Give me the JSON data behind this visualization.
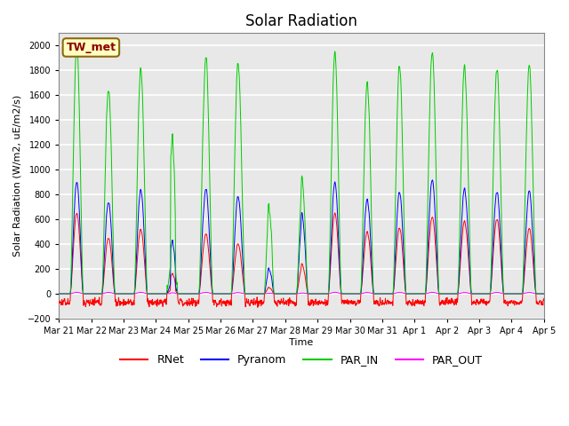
{
  "title": "Solar Radiation",
  "xlabel": "Time",
  "ylabel": "Solar Radiation (W/m2, uE/m2/s)",
  "ylim": [
    -200,
    2100
  ],
  "yticks": [
    -200,
    0,
    200,
    400,
    600,
    800,
    1000,
    1200,
    1400,
    1600,
    1800,
    2000
  ],
  "x_labels": [
    "Mar 21",
    "Mar 22",
    "Mar 23",
    "Mar 24",
    "Mar 25",
    "Mar 26",
    "Mar 27",
    "Mar 28",
    "Mar 29",
    "Mar 30",
    "Mar 31",
    "Apr 1",
    "Apr 2",
    "Apr 3",
    "Apr 4",
    "Apr 5"
  ],
  "station_label": "TW_met",
  "station_label_color": "#8B0000",
  "station_box_facecolor": "#FFFFC0",
  "station_box_edgecolor": "#8B6914",
  "colors": {
    "RNet": "#FF0000",
    "Pyranom": "#0000FF",
    "PAR_IN": "#00CC00",
    "PAR_OUT": "#FF00FF"
  },
  "background_color": "#E8E8E8",
  "grid_color": "#FFFFFF",
  "n_days": 15,
  "pts_per_day": 144,
  "figsize": [
    6.4,
    4.8
  ],
  "dpi": 100,
  "title_fontsize": 12,
  "axis_label_fontsize": 8,
  "tick_fontsize": 7,
  "legend_fontsize": 9,
  "day_conditions": [
    [
      650,
      900,
      2000,
      130,
      1.0,
      0.35,
      0.75
    ],
    [
      450,
      740,
      1650,
      120,
      0.85,
      0.33,
      0.73
    ],
    [
      520,
      840,
      1820,
      130,
      0.9,
      0.33,
      0.73
    ],
    [
      160,
      420,
      1250,
      80,
      0.5,
      0.33,
      0.67
    ],
    [
      480,
      840,
      1900,
      120,
      0.9,
      0.33,
      0.75
    ],
    [
      400,
      780,
      1850,
      100,
      0.85,
      0.33,
      0.75
    ],
    [
      50,
      200,
      700,
      40,
      0.3,
      0.35,
      0.65
    ],
    [
      230,
      620,
      900,
      60,
      0.5,
      0.35,
      0.7
    ],
    [
      650,
      900,
      1950,
      130,
      1.0,
      0.33,
      0.73
    ],
    [
      500,
      760,
      1700,
      110,
      0.9,
      0.33,
      0.73
    ],
    [
      530,
      820,
      1840,
      115,
      0.9,
      0.33,
      0.73
    ],
    [
      620,
      920,
      1950,
      125,
      0.95,
      0.33,
      0.75
    ],
    [
      580,
      840,
      1820,
      110,
      0.9,
      0.33,
      0.75
    ],
    [
      600,
      820,
      1810,
      115,
      0.9,
      0.33,
      0.75
    ],
    [
      520,
      820,
      1820,
      110,
      0.85,
      0.33,
      0.75
    ]
  ]
}
